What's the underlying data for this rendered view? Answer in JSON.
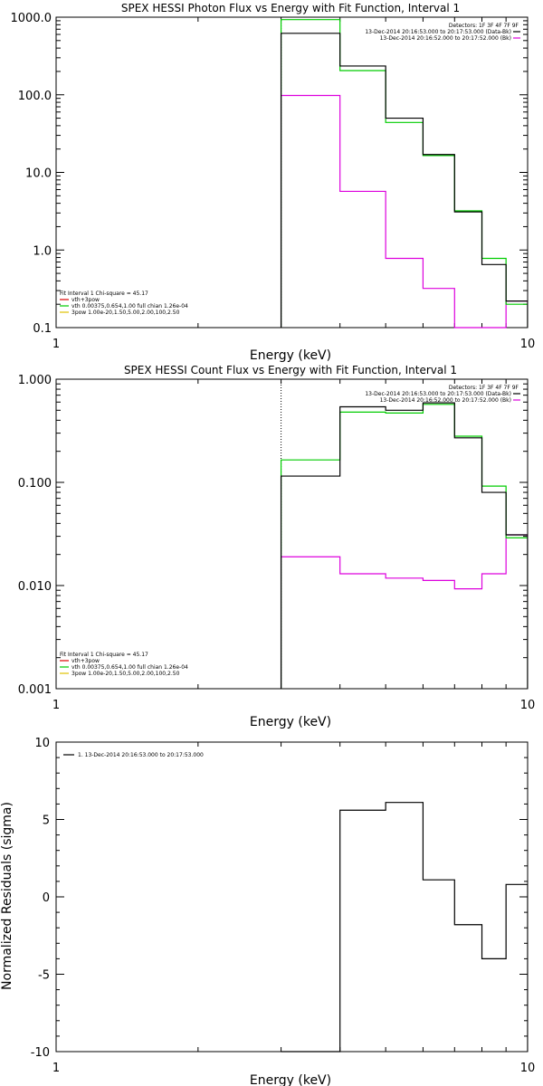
{
  "chart_data": [
    {
      "type": "line",
      "title": "SPEX HESSI Photon Flux vs Energy with Fit Function, Interval 1",
      "xlabel": "Energy (keV)",
      "ylabel": "",
      "xscale": "log",
      "yscale": "log",
      "xlim": [
        1,
        10
      ],
      "ylim": [
        0.1,
        1000
      ],
      "xticks": [
        "1",
        "10"
      ],
      "yticks": [
        "0.1",
        "1.0",
        "10.0",
        "100.0",
        "1000.0"
      ],
      "fit_energy_marker": 3,
      "bin_edges": [
        3,
        4,
        5,
        6,
        7,
        8,
        9,
        10
      ],
      "series": [
        {
          "key": "data",
          "color": "#000000",
          "values": [
            620,
            235,
            50,
            17,
            3.1,
            0.65,
            0.22
          ]
        },
        {
          "key": "model",
          "color": "#00cc00",
          "values": [
            930,
            205,
            44,
            16.5,
            3.2,
            0.78,
            0.2
          ]
        },
        {
          "key": "background",
          "color": "#dd00dd",
          "values": [
            98,
            5.7,
            0.78,
            0.32,
            0.1,
            0.1,
            0.22
          ]
        }
      ],
      "legend_right": {
        "position": "top-right",
        "lines": [
          {
            "text": "Detectors: 1F 3F 4F 7F 9F",
            "color": ""
          },
          {
            "text": "13-Dec-2014 20:16:53.000 to 20:17:53.000 (Data-Bk)",
            "color": "#000000"
          },
          {
            "text": "13-Dec-2014 20:16:52.000 to 20:17:52.000 (Bk)",
            "color": "#dd00dd"
          }
        ]
      },
      "legend_left": {
        "position": "bottom-left",
        "lines": [
          {
            "text": "Fit Interval 1    Chi-square = 45.17",
            "color": ""
          },
          {
            "text": "vth+3pow",
            "color": "#dd0000"
          },
          {
            "text": "vth 0.00375,0.654,1.00  full chian 1.26e-04",
            "color": "#00cc00"
          },
          {
            "text": "3pow 1.00e-20,1.50,5.00,2.00,100,2.50",
            "color": "#e0c000"
          }
        ]
      }
    },
    {
      "type": "line",
      "title": "SPEX HESSI Count Flux vs Energy with Fit Function, Interval 1",
      "xlabel": "Energy (keV)",
      "ylabel": "",
      "xscale": "log",
      "yscale": "log",
      "xlim": [
        1,
        10
      ],
      "ylim": [
        0.001,
        1
      ],
      "xticks": [
        "1",
        "10"
      ],
      "yticks": [
        "0.001",
        "0.010",
        "0.100",
        "1.000"
      ],
      "fit_energy_marker": 3,
      "bin_edges": [
        3,
        4,
        5,
        6,
        7,
        8,
        9,
        10
      ],
      "series": [
        {
          "key": "data",
          "color": "#000000",
          "values": [
            0.115,
            0.54,
            0.5,
            0.59,
            0.27,
            0.08,
            0.031
          ]
        },
        {
          "key": "model",
          "color": "#00cc00",
          "values": [
            0.165,
            0.48,
            0.47,
            0.57,
            0.28,
            0.092,
            0.029
          ]
        },
        {
          "key": "background",
          "color": "#dd00dd",
          "values": [
            0.019,
            0.013,
            0.0118,
            0.0112,
            0.0093,
            0.013,
            0.031
          ]
        }
      ],
      "legend_right": {
        "position": "top-right",
        "lines": [
          {
            "text": "Detectors: 1F 3F 4F 7F 9F",
            "color": ""
          },
          {
            "text": "13-Dec-2014 20:16:53.000 to 20:17:53.000 (Data-Bk)",
            "color": "#000000"
          },
          {
            "text": "13-Dec-2014 20:16:52.000 to 20:17:52.000 (Bk)",
            "color": "#dd00dd"
          }
        ]
      },
      "legend_left": {
        "position": "bottom-left",
        "lines": [
          {
            "text": "Fit Interval 1    Chi-square = 45.17",
            "color": ""
          },
          {
            "text": "vth+3pow",
            "color": "#dd0000"
          },
          {
            "text": "vth 0.00375,0.654,1.00  full chian 1.26e-04",
            "color": "#00cc00"
          },
          {
            "text": "3pow 1.00e-20,1.50,5.00,2.00,100,2.50",
            "color": "#e0c000"
          }
        ]
      }
    },
    {
      "type": "line",
      "title": "",
      "xlabel": "Energy (keV)",
      "ylabel": "Normalized Residuals (sigma)",
      "xscale": "log",
      "yscale": "linear",
      "xlim": [
        1,
        10
      ],
      "ylim": [
        -10,
        10
      ],
      "xticks": [
        "1",
        "10"
      ],
      "yticks": [
        "-10",
        "-5",
        "0",
        "5",
        "10"
      ],
      "bin_edges": [
        3,
        4,
        5,
        6,
        7,
        8,
        9,
        10
      ],
      "series": [
        {
          "key": "residuals",
          "color": "#000000",
          "values": [
            -10,
            5.6,
            6.1,
            1.1,
            -1.8,
            -4.0,
            0.8
          ]
        }
      ],
      "legend_left": {
        "position": "top-left",
        "lines": [
          {
            "text": "1. 13-Dec-2014 20:16:53.000 to 20:17:53.000",
            "color": "#000000"
          }
        ]
      }
    }
  ]
}
